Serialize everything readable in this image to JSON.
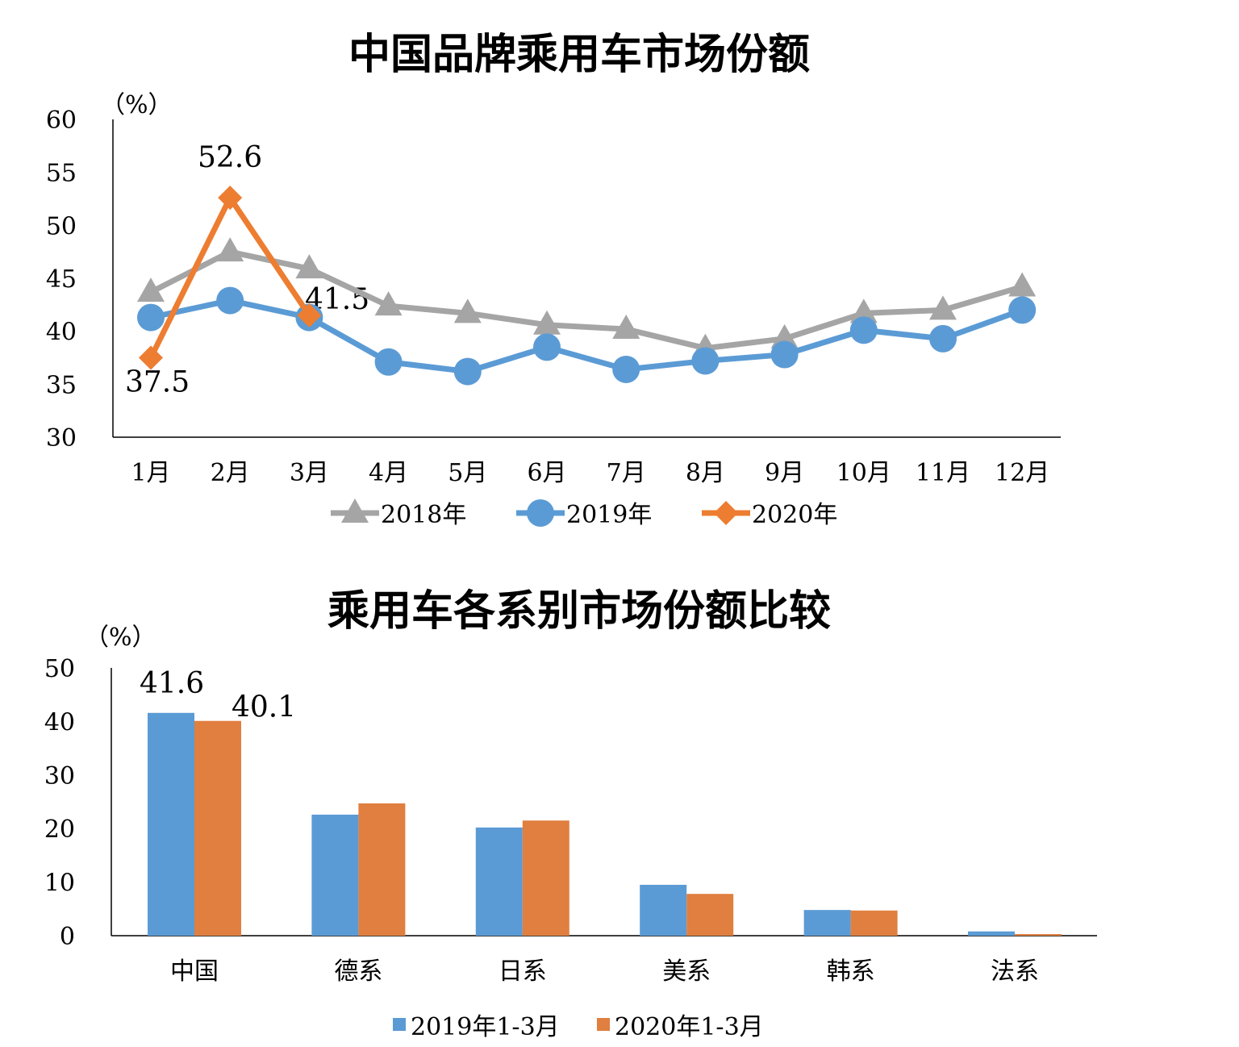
{
  "chart_data": [
    {
      "type": "line",
      "title": "中国品牌乘用车市场份额",
      "ylabel": "（%）",
      "categories": [
        "1月",
        "2月",
        "3月",
        "4月",
        "5月",
        "6月",
        "7月",
        "8月",
        "9月",
        "10月",
        "11月",
        "12月"
      ],
      "series": [
        {
          "name": "2018年",
          "color": "#a5a5a5",
          "marker": "triangle",
          "values": [
            43.7,
            47.5,
            45.9,
            42.4,
            41.7,
            40.6,
            40.2,
            38.4,
            39.3,
            41.7,
            42.0,
            44.2
          ]
        },
        {
          "name": "2019年",
          "color": "#5b9bd5",
          "marker": "circle",
          "values": [
            41.3,
            42.9,
            41.3,
            37.1,
            36.2,
            38.5,
            36.4,
            37.2,
            37.8,
            40.1,
            39.3,
            42.0
          ]
        },
        {
          "name": "2020年",
          "color": "#ed7d31",
          "marker": "diamond",
          "values": [
            37.5,
            52.6,
            41.5,
            null,
            null,
            null,
            null,
            null,
            null,
            null,
            null,
            null
          ]
        }
      ],
      "ylim": [
        30,
        60
      ],
      "yticks": [
        30,
        35,
        40,
        45,
        50,
        55,
        60
      ],
      "legend": "bottom"
    },
    {
      "type": "bar",
      "title": "乘用车各系别市场份额比较",
      "ylabel": "（%）",
      "categories": [
        "中国",
        "德系",
        "日系",
        "美系",
        "韩系",
        "法系"
      ],
      "series": [
        {
          "name": "2019年1-3月",
          "color": "#5b9bd5",
          "values": [
            41.6,
            22.6,
            20.2,
            9.5,
            4.8,
            0.8
          ]
        },
        {
          "name": "2020年1-3月",
          "color": "#e07f3f",
          "values": [
            40.1,
            24.7,
            21.5,
            7.8,
            4.7,
            0.3
          ]
        }
      ],
      "ylim": [
        0,
        50
      ],
      "yticks": [
        0,
        10,
        20,
        30,
        40,
        50
      ],
      "legend": "bottom"
    }
  ]
}
